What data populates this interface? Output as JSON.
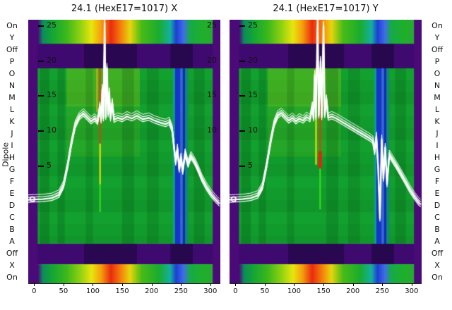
{
  "figure": {
    "left_axis_label": "Dipole",
    "row_labels": [
      "On",
      "Y",
      "Off",
      "P",
      "O",
      "N",
      "M",
      "L",
      "K",
      "J",
      "I",
      "H",
      "G",
      "F",
      "E",
      "D",
      "C",
      "B",
      "A",
      "Off",
      "X",
      "On"
    ]
  },
  "chart_data": [
    {
      "type": "heatmap",
      "panel": "X",
      "title": "24.1 (HexE17=1017) X",
      "x_range": [
        -10,
        317
      ],
      "x_ticks": [
        0,
        50,
        100,
        150,
        200,
        250,
        300
      ],
      "value_range": [
        -11.7,
        25.9
      ],
      "value_axis": {
        "left_ticks": [
          25,
          20,
          15,
          10,
          5
        ],
        "right_ticks": [
          25,
          20,
          15,
          10
        ]
      },
      "colors": {
        "off": "#3f0a70",
        "letters": "#12a02e",
        "margin": "#4a0a78"
      },
      "bands": [
        {
          "y0": 0.0,
          "y1": 0.091,
          "kind": "rainbow"
        },
        {
          "y0": 0.091,
          "y1": 0.1845,
          "kind": "off"
        },
        {
          "y0": 0.1845,
          "y1": 0.85,
          "kind": "letters"
        },
        {
          "y0": 0.85,
          "y1": 0.928,
          "kind": "off"
        },
        {
          "y0": 0.928,
          "y1": 1.0,
          "kind": "rainbow"
        }
      ],
      "rainbow_stops": [
        [
          0,
          "#4a0a78"
        ],
        [
          0.05,
          "#4a0a78"
        ],
        [
          0.075,
          "#0d8c5a"
        ],
        [
          0.13,
          "#16a832"
        ],
        [
          0.2,
          "#3db81c"
        ],
        [
          0.27,
          "#8fd112"
        ],
        [
          0.33,
          "#e8e60e"
        ],
        [
          0.38,
          "#f59e0c"
        ],
        [
          0.43,
          "#ea2b10"
        ],
        [
          0.48,
          "#f57d0c"
        ],
        [
          0.53,
          "#e8d60e"
        ],
        [
          0.59,
          "#49bb17"
        ],
        [
          0.68,
          "#1aac2e"
        ],
        [
          0.74,
          "#14b0a0"
        ],
        [
          0.77,
          "#1e3fd4"
        ],
        [
          0.81,
          "#3f6fe8"
        ],
        [
          0.84,
          "#17a94a"
        ],
        [
          0.91,
          "#1fb02a"
        ],
        [
          0.965,
          "#28a832"
        ],
        [
          1,
          "#4a0a78"
        ]
      ],
      "stripes": [
        [
          -10,
          6,
          0,
          1,
          "#4a0a78"
        ],
        [
          304,
          317,
          0,
          1,
          "#4a0a78"
        ],
        [
          85,
          175,
          0.091,
          0.1845,
          "rgba(15,5,45,0.45)"
        ],
        [
          232,
          270,
          0.091,
          0.1845,
          "rgba(15,5,45,0.5)"
        ],
        [
          85,
          175,
          0.85,
          0.928,
          "rgba(15,5,45,0.45)"
        ],
        [
          232,
          270,
          0.85,
          0.928,
          "rgba(15,5,45,0.5)"
        ],
        [
          55,
          180,
          0.1845,
          0.33,
          "rgba(170,215,10,0.30)"
        ],
        [
          55,
          180,
          0.33,
          0.52,
          "rgba(130,205,10,0.16)"
        ],
        [
          10,
          26,
          0.1845,
          0.85,
          "rgba(0,55,15,0.20)"
        ],
        [
          40,
          52,
          0.1845,
          0.85,
          "rgba(0,55,15,0.18)"
        ],
        [
          88,
          100,
          0.1845,
          0.85,
          "rgba(0,55,15,0.15)"
        ],
        [
          150,
          170,
          0.1845,
          0.85,
          "rgba(0,55,15,0.18)"
        ],
        [
          192,
          212,
          0.1845,
          0.85,
          "rgba(0,55,15,0.15)"
        ],
        [
          272,
          290,
          0.1845,
          0.85,
          "rgba(0,55,15,0.18)"
        ],
        [
          236,
          240,
          0.1845,
          0.85,
          "#0e9c86"
        ],
        [
          240,
          249,
          0.1845,
          0.85,
          "#1633cc"
        ],
        [
          249,
          253,
          0.1845,
          0.85,
          "#3a66e0"
        ],
        [
          253,
          257,
          0.1845,
          0.85,
          "#0f2bb8"
        ],
        [
          257,
          262,
          0.1845,
          0.85,
          "#12847a"
        ],
        [
          106,
          108,
          0.1845,
          0.35,
          "#f0b00a"
        ],
        [
          111,
          113.5,
          0.1845,
          0.47,
          "#e63910"
        ],
        [
          111,
          113.5,
          0.47,
          0.625,
          "#f0e00a"
        ],
        [
          111,
          113.5,
          0.625,
          0.73,
          "#35e019"
        ]
      ],
      "trace": [
        [
          -10,
          0.2
        ],
        [
          0,
          0.25
        ],
        [
          15,
          0.3
        ],
        [
          30,
          0.45
        ],
        [
          42,
          0.9
        ],
        [
          50,
          2.2
        ],
        [
          57,
          5.0
        ],
        [
          63,
          8.0
        ],
        [
          70,
          10.8
        ],
        [
          77,
          12.0
        ],
        [
          84,
          12.5
        ],
        [
          91,
          11.9
        ],
        [
          97,
          11.4
        ],
        [
          103,
          11.8
        ],
        [
          108,
          11.3
        ],
        [
          112,
          13.5
        ],
        [
          114,
          11.5
        ],
        [
          116,
          16.0
        ],
        [
          118,
          11.8
        ],
        [
          120,
          25.5
        ],
        [
          122,
          12.0
        ],
        [
          124,
          19.0
        ],
        [
          126,
          12.4
        ],
        [
          128,
          15.5
        ],
        [
          130,
          11.8
        ],
        [
          133,
          14.0
        ],
        [
          136,
          11.6
        ],
        [
          142,
          11.9
        ],
        [
          150,
          11.7
        ],
        [
          158,
          12.1
        ],
        [
          166,
          11.8
        ],
        [
          175,
          12.2
        ],
        [
          185,
          11.7
        ],
        [
          195,
          11.9
        ],
        [
          205,
          11.5
        ],
        [
          215,
          11.2
        ],
        [
          224,
          11.0
        ],
        [
          230,
          11.3
        ],
        [
          235,
          10.2
        ],
        [
          238,
          7.8
        ],
        [
          241,
          5.5
        ],
        [
          244,
          7.5
        ],
        [
          247,
          4.5
        ],
        [
          250,
          6.2
        ],
        [
          253,
          4.2
        ],
        [
          257,
          6.8
        ],
        [
          262,
          5.2
        ],
        [
          267,
          6.4
        ],
        [
          273,
          5.6
        ],
        [
          279,
          4.5
        ],
        [
          286,
          3.1
        ],
        [
          293,
          2.0
        ],
        [
          301,
          1.0
        ],
        [
          308,
          0.3
        ],
        [
          315,
          -0.3
        ]
      ],
      "trace_marker": [
        -3,
        0.3
      ]
    },
    {
      "type": "heatmap",
      "panel": "Y",
      "title": "24.1 (HexE17=1017) Y",
      "x_range": [
        -10,
        317
      ],
      "x_ticks": [
        0,
        50,
        100,
        150,
        200,
        250,
        300
      ],
      "value_range": [
        -11.7,
        25.9
      ],
      "value_axis": {
        "left_ticks": [
          25,
          20,
          15,
          10,
          5
        ],
        "right_ticks": []
      },
      "colors": {
        "off": "#3f0a70",
        "letters": "#12a02e",
        "margin": "#4a0a78"
      },
      "bands": [
        {
          "y0": 0.0,
          "y1": 0.091,
          "kind": "rainbow"
        },
        {
          "y0": 0.091,
          "y1": 0.1845,
          "kind": "off"
        },
        {
          "y0": 0.1845,
          "y1": 0.85,
          "kind": "letters"
        },
        {
          "y0": 0.85,
          "y1": 0.928,
          "kind": "off"
        },
        {
          "y0": 0.928,
          "y1": 1.0,
          "kind": "rainbow"
        }
      ],
      "rainbow_stops": [
        [
          0,
          "#4a0a78"
        ],
        [
          0.05,
          "#4a0a78"
        ],
        [
          0.075,
          "#0d8c5a"
        ],
        [
          0.13,
          "#16a832"
        ],
        [
          0.2,
          "#3db81c"
        ],
        [
          0.27,
          "#8fd112"
        ],
        [
          0.33,
          "#e8e60e"
        ],
        [
          0.38,
          "#f59e0c"
        ],
        [
          0.43,
          "#ea2b10"
        ],
        [
          0.48,
          "#f57d0c"
        ],
        [
          0.53,
          "#e8d60e"
        ],
        [
          0.59,
          "#49bb17"
        ],
        [
          0.68,
          "#1aac2e"
        ],
        [
          0.74,
          "#14b0a0"
        ],
        [
          0.77,
          "#1e3fd4"
        ],
        [
          0.81,
          "#3f6fe8"
        ],
        [
          0.84,
          "#17a94a"
        ],
        [
          0.91,
          "#1fb02a"
        ],
        [
          0.965,
          "#28a832"
        ],
        [
          1,
          "#4a0a78"
        ]
      ],
      "stripes": [
        [
          -10,
          6,
          0,
          1,
          "#4a0a78"
        ],
        [
          304,
          317,
          0,
          1,
          "#4a0a78"
        ],
        [
          90,
          185,
          0.091,
          0.1845,
          "rgba(15,5,45,0.45)"
        ],
        [
          232,
          270,
          0.091,
          0.1845,
          "rgba(15,5,45,0.5)"
        ],
        [
          90,
          185,
          0.85,
          0.928,
          "rgba(15,5,45,0.45)"
        ],
        [
          232,
          270,
          0.85,
          0.928,
          "rgba(15,5,45,0.5)"
        ],
        [
          55,
          180,
          0.1845,
          0.33,
          "rgba(170,215,10,0.30)"
        ],
        [
          55,
          180,
          0.33,
          0.52,
          "rgba(130,205,10,0.16)"
        ],
        [
          10,
          26,
          0.1845,
          0.85,
          "rgba(0,55,15,0.20)"
        ],
        [
          40,
          52,
          0.1845,
          0.85,
          "rgba(0,55,15,0.18)"
        ],
        [
          88,
          100,
          0.1845,
          0.85,
          "rgba(0,55,15,0.15)"
        ],
        [
          155,
          175,
          0.1845,
          0.85,
          "rgba(0,55,15,0.18)"
        ],
        [
          192,
          212,
          0.1845,
          0.85,
          "rgba(0,55,15,0.15)"
        ],
        [
          272,
          290,
          0.1845,
          0.85,
          "rgba(0,55,15,0.18)"
        ],
        [
          236,
          240,
          0.1845,
          0.85,
          "#0e9c86"
        ],
        [
          240,
          249,
          0.1845,
          0.85,
          "#1633cc"
        ],
        [
          249,
          253,
          0.1845,
          0.85,
          "#3a66e0"
        ],
        [
          253,
          257,
          0.1845,
          0.85,
          "#0f2bb8"
        ],
        [
          257,
          262,
          0.1845,
          0.85,
          "#12847a"
        ],
        [
          136,
          138.5,
          0.1845,
          0.55,
          "#f0e00a"
        ],
        [
          143,
          145.5,
          0.22,
          0.5,
          "#e63910"
        ],
        [
          141.5,
          147,
          0.5,
          0.565,
          "#e62010"
        ],
        [
          143,
          145.5,
          0.565,
          0.72,
          "#35e019"
        ]
      ],
      "trace": [
        [
          -10,
          0.2
        ],
        [
          0,
          0.25
        ],
        [
          12,
          0.3
        ],
        [
          26,
          0.45
        ],
        [
          38,
          0.8
        ],
        [
          46,
          2.0
        ],
        [
          53,
          5.0
        ],
        [
          60,
          8.5
        ],
        [
          66,
          11.0
        ],
        [
          72,
          12.2
        ],
        [
          78,
          12.6
        ],
        [
          85,
          12.0
        ],
        [
          91,
          11.5
        ],
        [
          97,
          11.9
        ],
        [
          103,
          11.4
        ],
        [
          109,
          11.8
        ],
        [
          115,
          11.5
        ],
        [
          121,
          12.0
        ],
        [
          127,
          11.7
        ],
        [
          131,
          13.5
        ],
        [
          133,
          11.8
        ],
        [
          135,
          18.0
        ],
        [
          137,
          12.0
        ],
        [
          140,
          25.8
        ],
        [
          142,
          12.2
        ],
        [
          145,
          20.0
        ],
        [
          147,
          12.0
        ],
        [
          150,
          25.0
        ],
        [
          152,
          12.3
        ],
        [
          155,
          14.5
        ],
        [
          158,
          11.9
        ],
        [
          164,
          12.1
        ],
        [
          172,
          11.8
        ],
        [
          180,
          11.4
        ],
        [
          188,
          11.0
        ],
        [
          196,
          10.6
        ],
        [
          204,
          10.2
        ],
        [
          212,
          9.8
        ],
        [
          220,
          9.4
        ],
        [
          228,
          9.0
        ],
        [
          234,
          8.6
        ],
        [
          237,
          7.0
        ],
        [
          240,
          9.2
        ],
        [
          243,
          4.8
        ],
        [
          246,
          -2.5
        ],
        [
          249,
          8.8
        ],
        [
          252,
          3.2
        ],
        [
          255,
          7.6
        ],
        [
          258,
          2.4
        ],
        [
          262,
          6.6
        ],
        [
          268,
          5.8
        ],
        [
          274,
          5.0
        ],
        [
          281,
          4.0
        ],
        [
          289,
          2.8
        ],
        [
          297,
          1.6
        ],
        [
          305,
          0.6
        ],
        [
          312,
          -0.2
        ],
        [
          315,
          -0.4
        ]
      ],
      "trace_marker": [
        -3,
        0.3
      ]
    }
  ]
}
